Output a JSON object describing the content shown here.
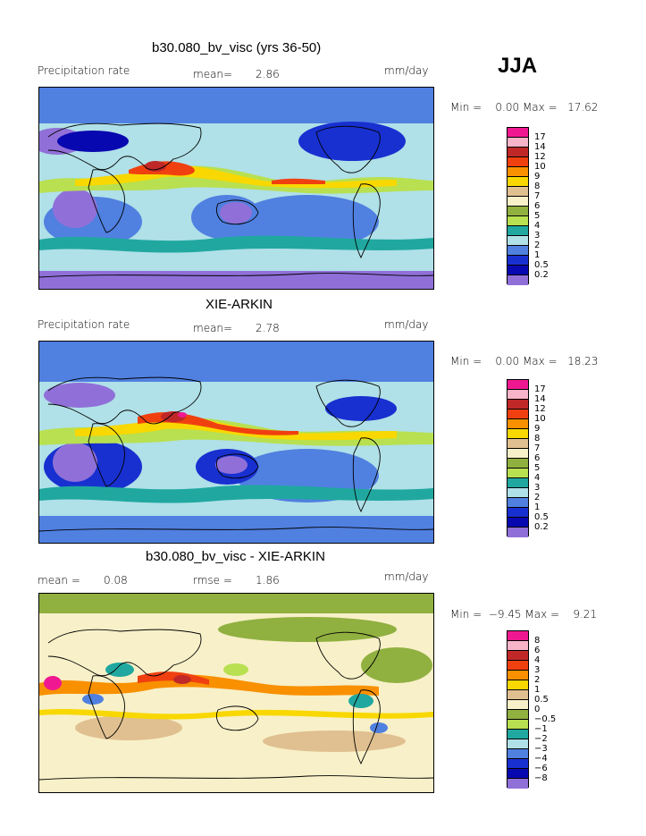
{
  "season": "JJA",
  "chart_data": [
    {
      "type": "heatmap",
      "title": "b30.080_bv_visc (yrs 36-50)",
      "variable_label": "Precipitation rate",
      "mean_label": "mean=",
      "mean_value": "2.86",
      "units": "mm/day",
      "minmax_text": "Min =    0.00 Max =   17.62",
      "min": 0.0,
      "max": 17.62,
      "legend_ticks": [
        "17",
        "14",
        "12",
        "10",
        "9",
        "8",
        "7",
        "6",
        "5",
        "4",
        "3",
        "2",
        "1",
        "0.5",
        "0.2"
      ],
      "legend_colors": [
        "#f01890",
        "#f8b4c8",
        "#c02828",
        "#f04010",
        "#f89000",
        "#f8d800",
        "#e0c090",
        "#f8f0c8",
        "#90b040",
        "#b8e050",
        "#20a8a0",
        "#b0e0e8",
        "#5080e0",
        "#1830d0",
        "#0808b0",
        "#9070d8"
      ]
    },
    {
      "type": "heatmap",
      "title": "XIE-ARKIN",
      "variable_label": "Precipitation rate",
      "mean_label": "mean=",
      "mean_value": "2.78",
      "units": "mm/day",
      "minmax_text": "Min =    0.00 Max =   18.23",
      "min": 0.0,
      "max": 18.23,
      "legend_ticks": [
        "17",
        "14",
        "12",
        "10",
        "9",
        "8",
        "7",
        "6",
        "5",
        "4",
        "3",
        "2",
        "1",
        "0.5",
        "0.2"
      ],
      "legend_colors": [
        "#f01890",
        "#f8b4c8",
        "#c02828",
        "#f04010",
        "#f89000",
        "#f8d800",
        "#e0c090",
        "#f8f0c8",
        "#90b040",
        "#b8e050",
        "#20a8a0",
        "#b0e0e8",
        "#5080e0",
        "#1830d0",
        "#0808b0",
        "#9070d8"
      ]
    },
    {
      "type": "heatmap",
      "title": "b30.080_bv_visc - XIE-ARKIN",
      "mean_label": "mean =",
      "mean_value": "0.08",
      "rmse_label": "rmse =",
      "rmse_value": "1.86",
      "units": "mm/day",
      "minmax_text": "Min =  −9.45 Max =    9.21",
      "min": -9.45,
      "max": 9.21,
      "legend_ticks": [
        "8",
        "6",
        "4",
        "3",
        "2",
        "1",
        "0.5",
        "0",
        "−0.5",
        "−1",
        "−2",
        "−3",
        "−4",
        "−6",
        "−8"
      ],
      "legend_colors": [
        "#f01890",
        "#f8b4c8",
        "#c02828",
        "#f04010",
        "#f89000",
        "#f8d800",
        "#e0c090",
        "#f8f0c8",
        "#90b040",
        "#b8e050",
        "#20a8a0",
        "#b0e0e8",
        "#5080e0",
        "#1830d0",
        "#0808b0",
        "#9070d8"
      ]
    }
  ]
}
